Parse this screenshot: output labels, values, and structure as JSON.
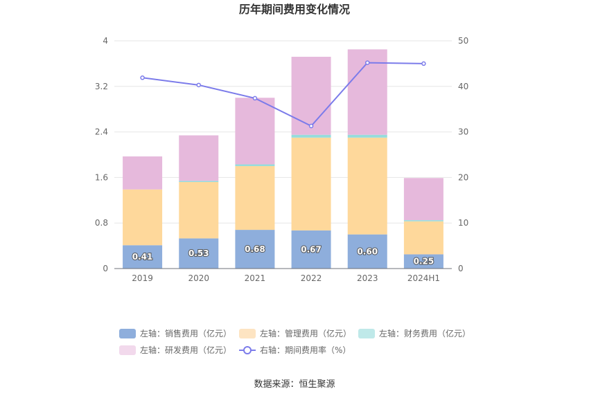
{
  "chart_data": {
    "type": "bar",
    "title": "历年期间费用变化情况",
    "categories": [
      "2019",
      "2020",
      "2021",
      "2022",
      "2023",
      "2024H1"
    ],
    "left_axis": {
      "ticks": [
        "0",
        "0.8",
        "1.6",
        "2.4",
        "3.2",
        "4"
      ],
      "ylim": [
        0,
        4
      ]
    },
    "right_axis": {
      "ticks": [
        "0",
        "10",
        "20",
        "30",
        "40",
        "50"
      ],
      "ylim": [
        0,
        50
      ]
    },
    "series": [
      {
        "name": "左轴：销售费用（亿元）",
        "type": "bar",
        "stack": "total",
        "axis": "left",
        "color": "#8eaedc",
        "legend_color": "#8eaedc",
        "values": [
          0.41,
          0.53,
          0.68,
          0.67,
          0.6,
          0.25
        ],
        "labels": [
          "0.41",
          "0.53",
          "0.68",
          "0.67",
          "0.60",
          "0.25"
        ]
      },
      {
        "name": "左轴：管理费用（亿元）",
        "type": "bar",
        "stack": "total",
        "axis": "left",
        "color": "#fed89b",
        "legend_color": "#fde4c2",
        "values": [
          0.98,
          0.99,
          1.12,
          1.63,
          1.7,
          0.58
        ]
      },
      {
        "name": "左轴：财务费用（亿元）",
        "type": "bar",
        "stack": "total",
        "axis": "left",
        "color": "#96dcdc",
        "legend_color": "#bfe9e9",
        "values": [
          0.0,
          0.02,
          0.03,
          0.05,
          0.05,
          0.02
        ]
      },
      {
        "name": "左轴：研发费用（亿元）",
        "type": "bar",
        "stack": "total",
        "axis": "left",
        "color": "#e6b9dc",
        "legend_color": "#f2d9ec",
        "values": [
          0.58,
          0.8,
          1.17,
          1.37,
          1.5,
          0.74
        ]
      },
      {
        "name": "右轴：期间费用率（%）",
        "type": "line",
        "axis": "right",
        "color": "#7b7bea",
        "values": [
          41.9,
          40.3,
          37.4,
          31.3,
          45.2,
          45.0
        ]
      }
    ],
    "grid": true,
    "legend_position": "bottom"
  },
  "source": "数据来源：恒生聚源"
}
